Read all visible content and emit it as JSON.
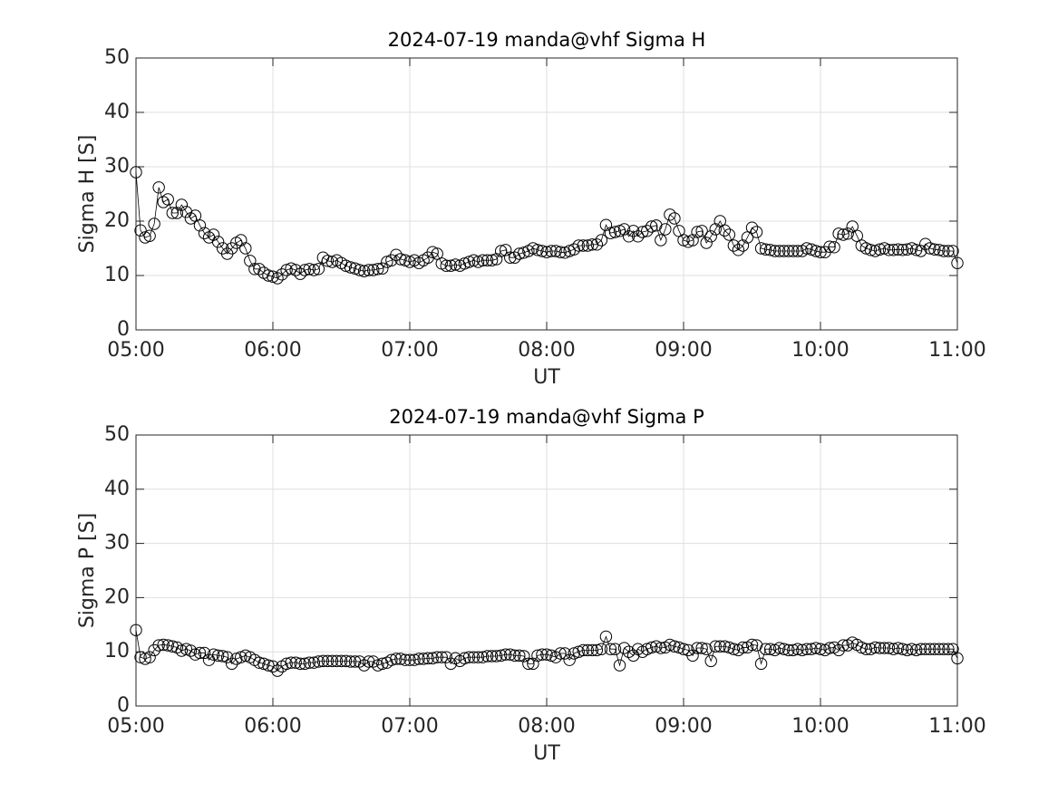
{
  "chart_data": [
    {
      "type": "line",
      "title": "2024-07-19  manda@vhf Sigma H",
      "xlabel": "UT",
      "ylabel": "Sigma H [S]",
      "x": [
        "05:00",
        "05:02",
        "05:04",
        "05:06",
        "05:08",
        "05:10",
        "05:12",
        "05:14",
        "05:16",
        "05:18",
        "05:20",
        "05:22",
        "05:24",
        "05:26",
        "05:28",
        "05:30",
        "05:32",
        "05:34",
        "05:36",
        "05:38",
        "05:40",
        "05:42",
        "05:44",
        "05:46",
        "05:48",
        "05:50",
        "05:52",
        "05:54",
        "05:56",
        "05:58",
        "06:00",
        "06:02",
        "06:04",
        "06:06",
        "06:08",
        "06:10",
        "06:12",
        "06:14",
        "06:16",
        "06:18",
        "06:20",
        "06:22",
        "06:24",
        "06:26",
        "06:28",
        "06:30",
        "06:32",
        "06:34",
        "06:36",
        "06:38",
        "06:40",
        "06:42",
        "06:44",
        "06:46",
        "06:48",
        "06:50",
        "06:52",
        "06:54",
        "06:56",
        "06:58",
        "07:00",
        "07:02",
        "07:04",
        "07:06",
        "07:08",
        "07:10",
        "07:12",
        "07:14",
        "07:16",
        "07:18",
        "07:20",
        "07:22",
        "07:24",
        "07:26",
        "07:28",
        "07:30",
        "07:32",
        "07:34",
        "07:36",
        "07:38",
        "07:40",
        "07:42",
        "07:44",
        "07:46",
        "07:48",
        "07:50",
        "07:52",
        "07:54",
        "07:56",
        "07:58",
        "08:00",
        "08:02",
        "08:04",
        "08:06",
        "08:08",
        "08:10",
        "08:12",
        "08:14",
        "08:16",
        "08:18",
        "08:20",
        "08:22",
        "08:24",
        "08:26",
        "08:28",
        "08:30",
        "08:32",
        "08:34",
        "08:36",
        "08:38",
        "08:40",
        "08:42",
        "08:44",
        "08:46",
        "08:48",
        "08:50",
        "08:52",
        "08:54",
        "08:56",
        "08:58",
        "09:00",
        "09:02",
        "09:04",
        "09:06",
        "09:08",
        "09:10",
        "09:12",
        "09:14",
        "09:16",
        "09:18",
        "09:20",
        "09:22",
        "09:24",
        "09:26",
        "09:28",
        "09:30",
        "09:32",
        "09:34",
        "09:36",
        "09:38",
        "09:40",
        "09:42",
        "09:44",
        "09:46",
        "09:48",
        "09:50",
        "09:52",
        "09:54",
        "09:56",
        "09:58",
        "10:00",
        "10:02",
        "10:04",
        "10:06",
        "10:08",
        "10:10",
        "10:12",
        "10:14",
        "10:16",
        "10:18",
        "10:20",
        "10:22",
        "10:24",
        "10:26",
        "10:28",
        "10:30",
        "10:32",
        "10:34",
        "10:36",
        "10:38",
        "10:40",
        "10:42",
        "10:44",
        "10:46",
        "10:48",
        "10:50",
        "10:52",
        "10:54",
        "10:56",
        "10:58",
        "11:00"
      ],
      "values": [
        29,
        18.3,
        17,
        17.3,
        19.5,
        26.2,
        23.5,
        24,
        21.5,
        21.5,
        23,
        21.7,
        20.5,
        21,
        19.2,
        17.8,
        17,
        17.5,
        16.2,
        15,
        14,
        15,
        16,
        16.5,
        15,
        12.7,
        11.2,
        11.2,
        10.5,
        10,
        9.8,
        9.5,
        10.2,
        11,
        11.3,
        11,
        10.3,
        11,
        11.2,
        11,
        11.2,
        13.3,
        12.7,
        12.5,
        12.8,
        12.3,
        11.8,
        11.5,
        11.3,
        11,
        10.8,
        11,
        11,
        11.2,
        11.3,
        12.5,
        12.8,
        13.8,
        13,
        12.8,
        12.5,
        12.8,
        12.3,
        12.8,
        13.3,
        14.3,
        14,
        12.2,
        11.8,
        11.8,
        12,
        11.8,
        12.2,
        12.5,
        12.8,
        12.5,
        12.8,
        12.8,
        12.8,
        13,
        14.5,
        14.7,
        13.3,
        13.3,
        14,
        14.2,
        14.5,
        15,
        14.7,
        14.5,
        14.3,
        14.5,
        14.5,
        14.3,
        14.2,
        14.5,
        14.8,
        15.5,
        15.5,
        15.5,
        15.7,
        15.7,
        16.5,
        19.3,
        17.8,
        18,
        18.2,
        18.5,
        17.2,
        18.2,
        17.2,
        18,
        18.2,
        19,
        19.2,
        16.5,
        18.5,
        21.2,
        20.5,
        18.2,
        16.5,
        16.2,
        16.5,
        18,
        18.2,
        16,
        17.2,
        18.5,
        20,
        18.3,
        17.5,
        15.5,
        14.7,
        15.5,
        17,
        18.8,
        18,
        15,
        14.8,
        14.7,
        14.5,
        14.5,
        14.5,
        14.5,
        14.5,
        14.5,
        14.5,
        15,
        14.8,
        14.5,
        14.3,
        14.3,
        15.3,
        15.2,
        17.7,
        17.5,
        17.7,
        19,
        17.3,
        15.5,
        15,
        14.7,
        14.5,
        14.8,
        15,
        14.7,
        14.7,
        14.8,
        14.7,
        14.8,
        15,
        14.7,
        14.5,
        15.8,
        15,
        14.8,
        14.7,
        14.5,
        14.5,
        14.5,
        12.3
      ],
      "color": "#000000",
      "marker": "circle",
      "grid": true,
      "xlim": [
        "05:00",
        "11:00"
      ],
      "xticks": [
        "05:00",
        "06:00",
        "07:00",
        "08:00",
        "09:00",
        "10:00",
        "11:00"
      ],
      "ylim": [
        0,
        50
      ],
      "yticks": [
        0,
        10,
        20,
        30,
        40,
        50
      ]
    },
    {
      "type": "line",
      "title": "2024-07-19  manda@vhf Sigma P",
      "xlabel": "UT",
      "ylabel": "Sigma P [S]",
      "x": [
        "05:00",
        "05:02",
        "05:04",
        "05:06",
        "05:08",
        "05:10",
        "05:12",
        "05:14",
        "05:16",
        "05:18",
        "05:20",
        "05:22",
        "05:24",
        "05:26",
        "05:28",
        "05:30",
        "05:32",
        "05:34",
        "05:36",
        "05:38",
        "05:40",
        "05:42",
        "05:44",
        "05:46",
        "05:48",
        "05:50",
        "05:52",
        "05:54",
        "05:56",
        "05:58",
        "06:00",
        "06:02",
        "06:04",
        "06:06",
        "06:08",
        "06:10",
        "06:12",
        "06:14",
        "06:16",
        "06:18",
        "06:20",
        "06:22",
        "06:24",
        "06:26",
        "06:28",
        "06:30",
        "06:32",
        "06:34",
        "06:36",
        "06:38",
        "06:40",
        "06:42",
        "06:44",
        "06:46",
        "06:48",
        "06:50",
        "06:52",
        "06:54",
        "06:56",
        "06:58",
        "07:00",
        "07:02",
        "07:04",
        "07:06",
        "07:08",
        "07:10",
        "07:12",
        "07:14",
        "07:16",
        "07:18",
        "07:20",
        "07:22",
        "07:24",
        "07:26",
        "07:28",
        "07:30",
        "07:32",
        "07:34",
        "07:36",
        "07:38",
        "07:40",
        "07:42",
        "07:44",
        "07:46",
        "07:48",
        "07:50",
        "07:52",
        "07:54",
        "07:56",
        "07:58",
        "08:00",
        "08:02",
        "08:04",
        "08:06",
        "08:08",
        "08:10",
        "08:12",
        "08:14",
        "08:16",
        "08:18",
        "08:20",
        "08:22",
        "08:24",
        "08:26",
        "08:28",
        "08:30",
        "08:32",
        "08:34",
        "08:36",
        "08:38",
        "08:40",
        "08:42",
        "08:44",
        "08:46",
        "08:48",
        "08:50",
        "08:52",
        "08:54",
        "08:56",
        "08:58",
        "09:00",
        "09:02",
        "09:04",
        "09:06",
        "09:08",
        "09:10",
        "09:12",
        "09:14",
        "09:16",
        "09:18",
        "09:20",
        "09:22",
        "09:24",
        "09:26",
        "09:28",
        "09:30",
        "09:32",
        "09:34",
        "09:36",
        "09:38",
        "09:40",
        "09:42",
        "09:44",
        "09:46",
        "09:48",
        "09:50",
        "09:52",
        "09:54",
        "09:56",
        "09:58",
        "10:00",
        "10:02",
        "10:04",
        "10:06",
        "10:08",
        "10:10",
        "10:12",
        "10:14",
        "10:16",
        "10:18",
        "10:20",
        "10:22",
        "10:24",
        "10:26",
        "10:28",
        "10:30",
        "10:32",
        "10:34",
        "10:36",
        "10:38",
        "10:40",
        "10:42",
        "10:44",
        "10:46",
        "10:48",
        "10:50",
        "10:52",
        "10:54",
        "10:56",
        "10:58",
        "11:00"
      ],
      "values": [
        14,
        9,
        8.7,
        9,
        10.3,
        11.2,
        11.3,
        11.2,
        11,
        10.8,
        10.2,
        10.5,
        10.2,
        9.5,
        9.8,
        9.8,
        8.5,
        9.5,
        9.3,
        9.2,
        9,
        7.8,
        8.7,
        9,
        9.3,
        9,
        8.5,
        8,
        7.8,
        7.5,
        7.3,
        6.5,
        7.3,
        7.8,
        8,
        8,
        7.8,
        7.8,
        8,
        8,
        8.2,
        8.3,
        8.3,
        8.3,
        8.3,
        8.3,
        8.3,
        8.2,
        8.2,
        8.2,
        7.5,
        8.2,
        8.2,
        7.5,
        7.8,
        8,
        8.5,
        8.7,
        8.7,
        8.5,
        8.5,
        8.5,
        8.7,
        8.7,
        8.8,
        8.8,
        9,
        9,
        9,
        7.8,
        8.8,
        8.3,
        8.8,
        9,
        9,
        9,
        9,
        9.2,
        9.2,
        9.2,
        9.3,
        9.5,
        9.5,
        9.3,
        9.3,
        9.2,
        7.8,
        7.8,
        9.3,
        9.5,
        9.5,
        9.3,
        9,
        9.7,
        9.7,
        8.5,
        9.7,
        10,
        10.3,
        10.3,
        10.3,
        10.3,
        10.5,
        12.8,
        10.5,
        10.5,
        7.5,
        10.7,
        10,
        9.3,
        10.5,
        10,
        10.5,
        10.8,
        11,
        10.7,
        10.8,
        11.3,
        11,
        10.8,
        10.5,
        10.3,
        9.3,
        10.7,
        10.7,
        10.5,
        8.3,
        11,
        11,
        11,
        10.8,
        10.5,
        10.3,
        10.8,
        10.8,
        11.3,
        11.2,
        7.8,
        10.5,
        10.5,
        10.3,
        10.7,
        10.5,
        10.3,
        10.3,
        10.5,
        10.3,
        10.5,
        10.5,
        10.7,
        10.5,
        10.3,
        10.7,
        10.8,
        10.3,
        11.2,
        11.2,
        11.7,
        11.3,
        10.8,
        10.5,
        10.5,
        10.8,
        10.7,
        10.7,
        10.7,
        10.5,
        10.7,
        10.5,
        10.3,
        10.5,
        10.3,
        10.5,
        10.5,
        10.5,
        10.5,
        10.5,
        10.5,
        10.5,
        10.5,
        8.8
      ],
      "color": "#000000",
      "marker": "circle",
      "grid": true,
      "xlim": [
        "05:00",
        "11:00"
      ],
      "xticks": [
        "05:00",
        "06:00",
        "07:00",
        "08:00",
        "09:00",
        "10:00",
        "11:00"
      ],
      "ylim": [
        0,
        50
      ],
      "yticks": [
        0,
        10,
        20,
        30,
        40,
        50
      ]
    }
  ]
}
